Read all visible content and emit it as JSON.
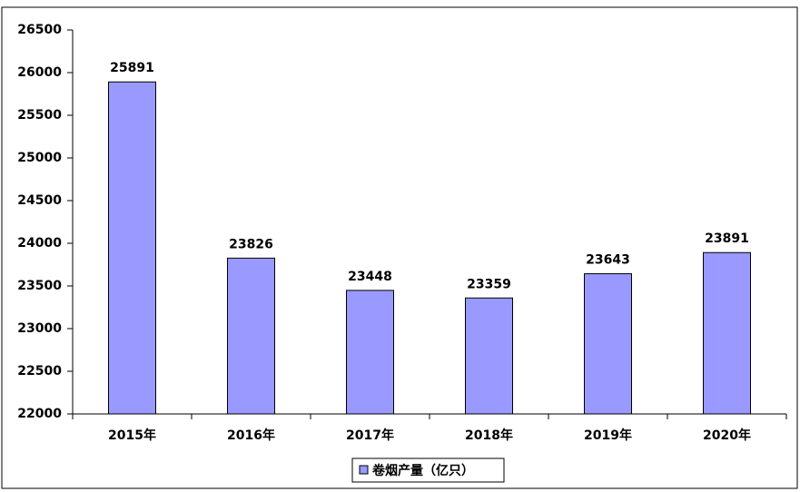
{
  "chart_data": {
    "type": "bar",
    "categories": [
      "2015年",
      "2016年",
      "2017年",
      "2018年",
      "2019年",
      "2020年"
    ],
    "series": [
      {
        "name": "卷烟产量（亿只）",
        "color": "#9999ff",
        "values": [
          25891,
          23826,
          23448,
          23359,
          23643,
          23891
        ]
      }
    ],
    "ylim": [
      22000,
      26500
    ],
    "yticks": [
      22000,
      22500,
      23000,
      23500,
      24000,
      24500,
      25000,
      25500,
      26000,
      26500
    ],
    "grid": false,
    "legend": "bottom",
    "data_labels": true
  }
}
